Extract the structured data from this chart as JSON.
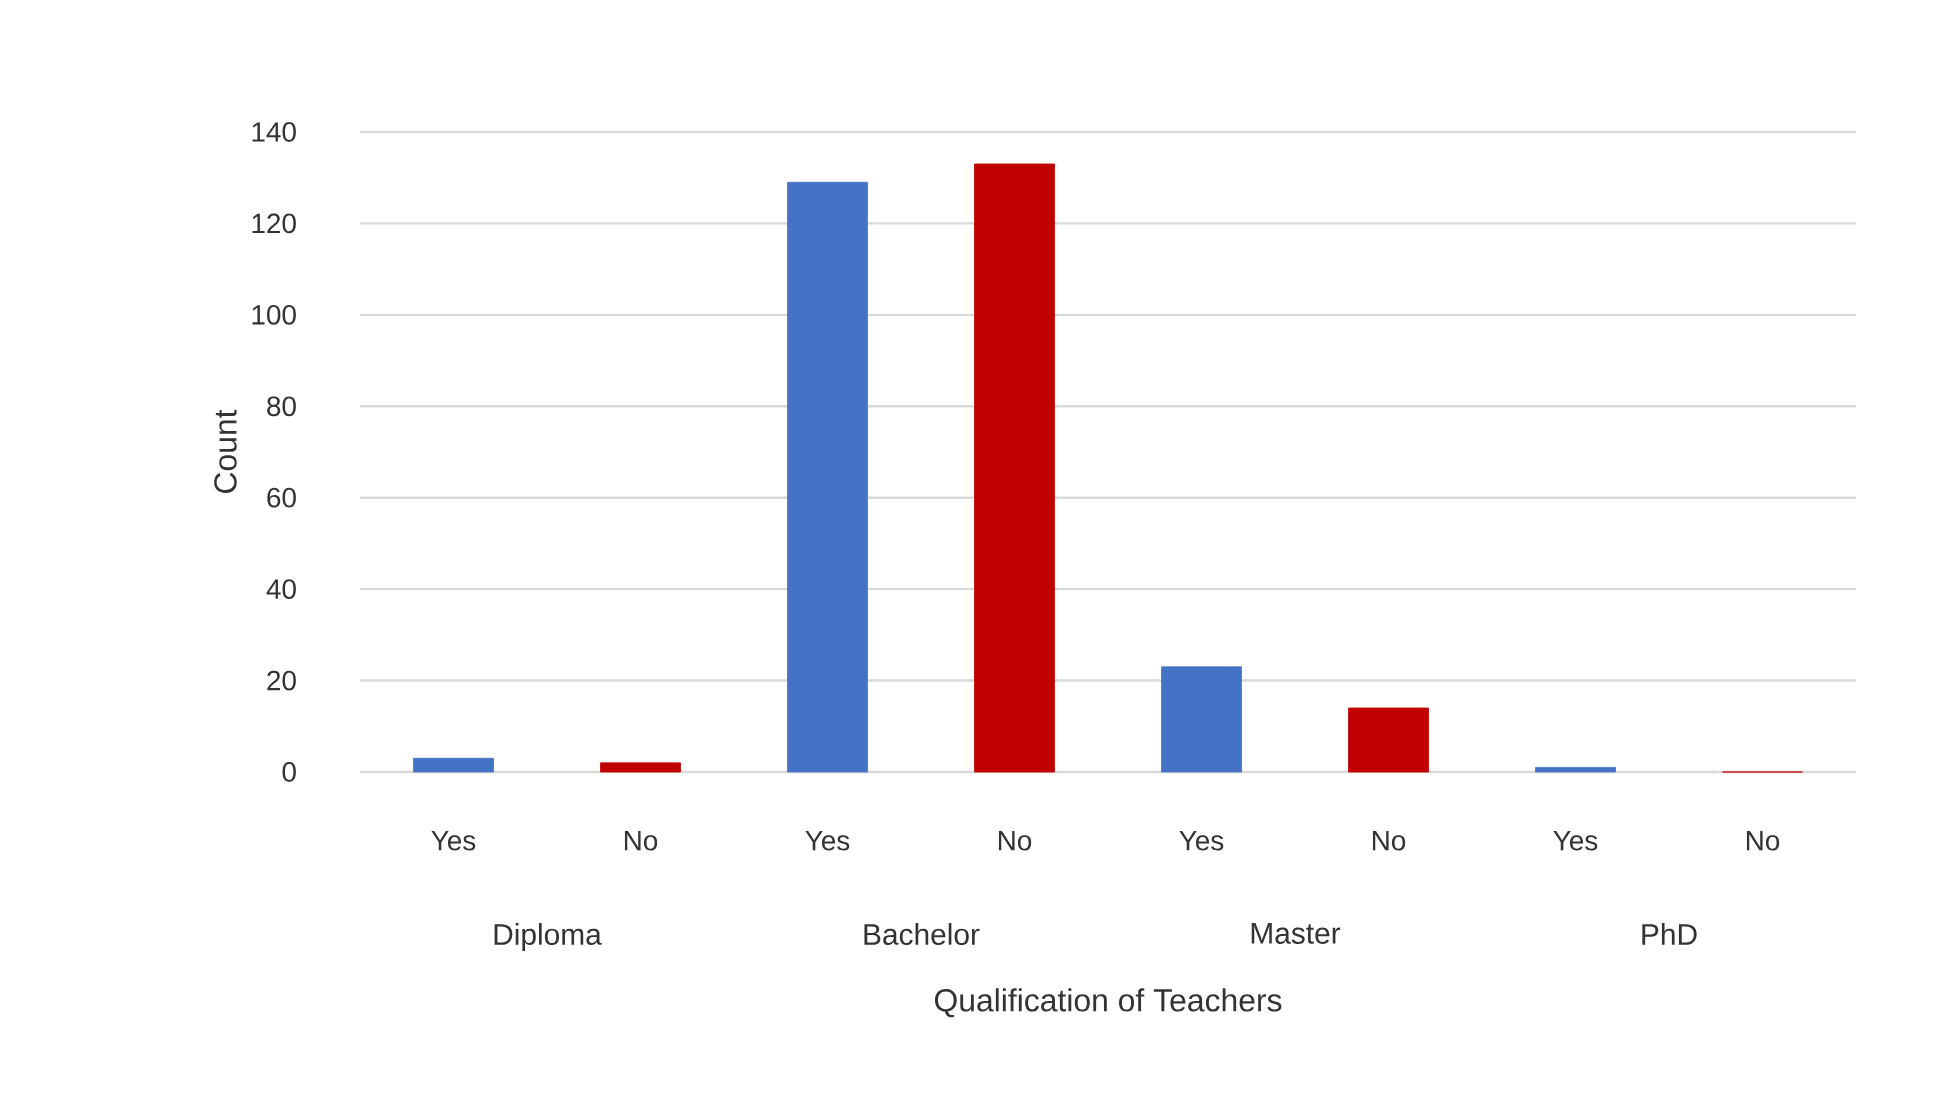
{
  "chart_data": {
    "type": "bar",
    "xlabel": "Qualification of Teachers",
    "ylabel": "Count",
    "categories": [
      "Yes",
      "No",
      "Yes",
      "No",
      "Yes",
      "No",
      "Yes",
      "No"
    ],
    "values": [
      3,
      2,
      129,
      133,
      23,
      14,
      1,
      0
    ],
    "colors": [
      "#4472c4",
      "#c00000",
      "#4472c4",
      "#c00000",
      "#4472c4",
      "#c00000",
      "#4472c4",
      "#c00000"
    ],
    "annotations": [
      "Diploma",
      "Bachelor",
      "Master",
      "PhD"
    ],
    "ylim": [
      0,
      140
    ],
    "yticks": [
      0,
      20,
      40,
      60,
      80,
      100,
      120,
      140
    ],
    "grid": "y"
  }
}
